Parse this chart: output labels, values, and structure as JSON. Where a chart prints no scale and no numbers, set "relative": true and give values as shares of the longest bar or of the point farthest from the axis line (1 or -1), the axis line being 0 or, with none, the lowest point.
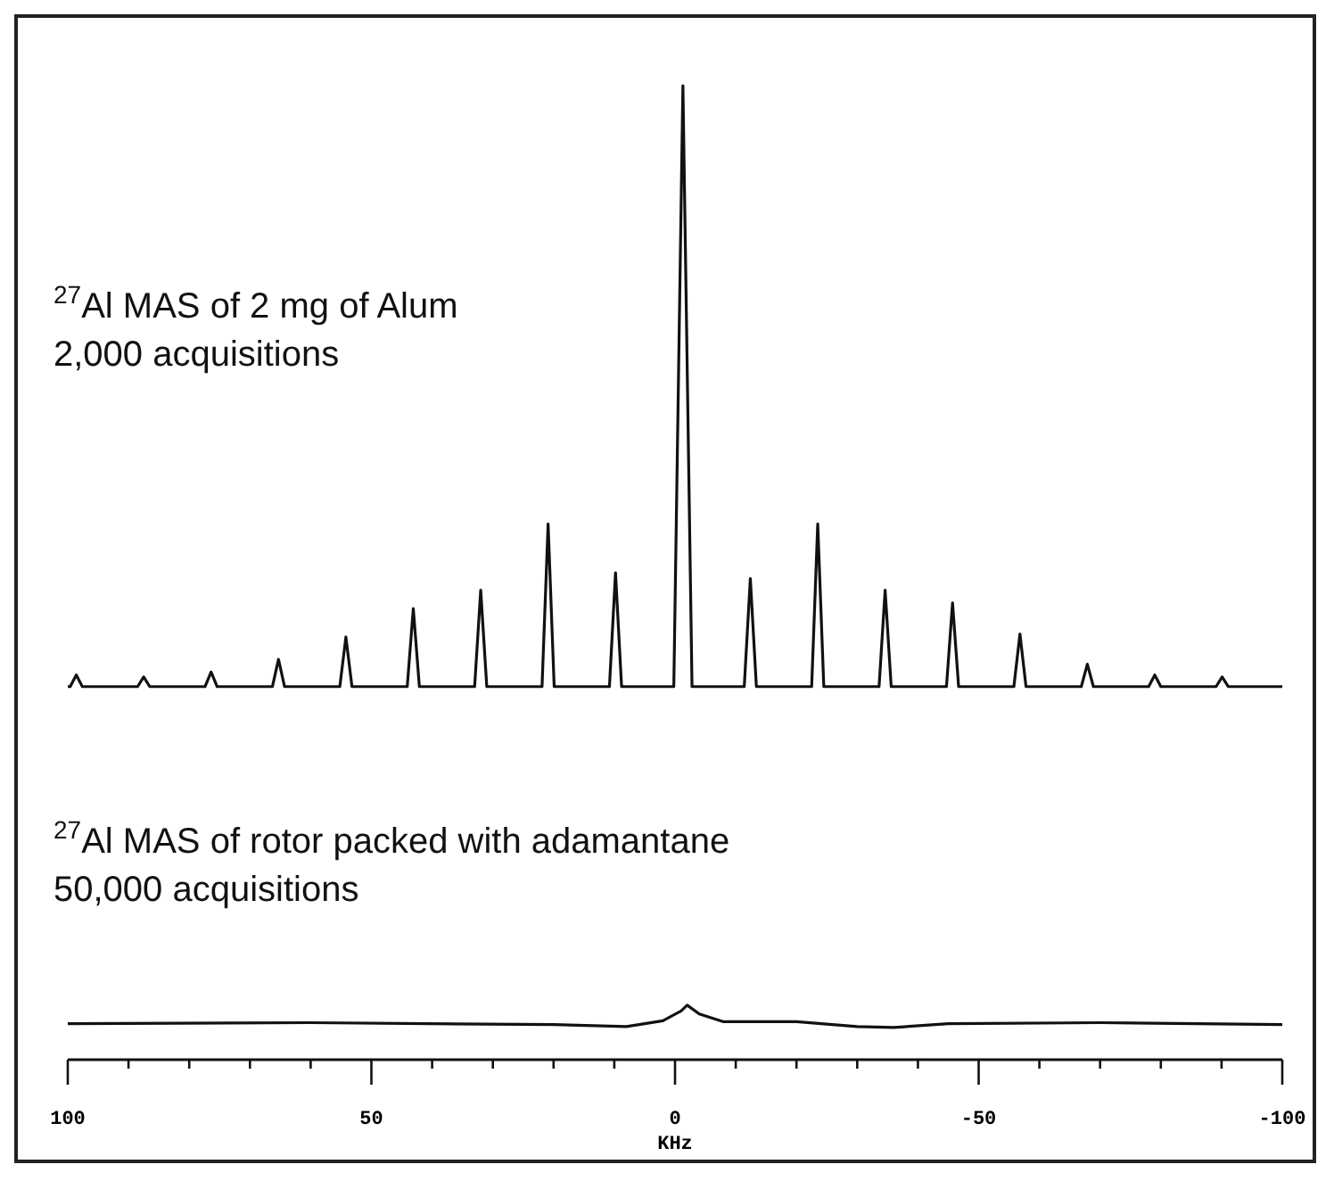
{
  "chart_data": {
    "type": "line",
    "relative": true,
    "xlabel": "KHz",
    "xlim": [
      100,
      -100
    ],
    "xticks": [
      100,
      {
        "value": 90,
        "label": null
      },
      {
        "value": 80,
        "label": null
      },
      {
        "value": 70,
        "label": null
      },
      {
        "value": 60,
        "label": null
      },
      50,
      {
        "value": 40,
        "label": null
      },
      {
        "value": 30,
        "label": null
      },
      {
        "value": 20,
        "label": null
      },
      {
        "value": 10,
        "label": null
      },
      0,
      {
        "value": -10,
        "label": null
      },
      {
        "value": -20,
        "label": null
      },
      {
        "value": -30,
        "label": null
      },
      {
        "value": -40,
        "label": null
      },
      -50,
      {
        "value": -60,
        "label": null
      },
      {
        "value": -70,
        "label": null
      },
      {
        "value": -80,
        "label": null
      },
      {
        "value": -90,
        "label": null
      },
      -100
    ],
    "annotations": [
      "$^{27}$Al MAS of 2 mg of Alum\n2,000 acquisitions",
      "$^{27}$Al MAS of rotor packed with adamantane\n50,000 acquisitions"
    ],
    "series": [
      {
        "color": "#111111",
        "x": [
          100,
          99.6,
          98.6,
          97.6,
          88.5,
          87.5,
          86.5,
          77.4,
          76.4,
          75.4,
          66.3,
          65.3,
          64.3,
          55.2,
          54.2,
          53.2,
          44.1,
          43.1,
          42.1,
          33.0,
          32.0,
          31.0,
          21.9,
          20.9,
          19.9,
          10.8,
          9.8,
          8.8,
          0.2,
          -1.3,
          -2.8,
          -11.4,
          -12.4,
          -13.4,
          -22.5,
          -23.5,
          -24.5,
          -33.6,
          -34.6,
          -35.6,
          -44.7,
          -45.7,
          -46.7,
          -55.8,
          -56.8,
          -57.8,
          -66.9,
          -67.9,
          -68.9,
          -78.0,
          -79.0,
          -80.0,
          -89.1,
          -90.1,
          -91.1,
          -100
        ],
        "values": [
          0.383,
          0.383,
          0.395,
          0.383,
          0.383,
          0.393,
          0.383,
          0.383,
          0.398,
          0.383,
          0.383,
          0.411,
          0.383,
          0.383,
          0.434,
          0.383,
          0.383,
          0.463,
          0.383,
          0.383,
          0.482,
          0.383,
          0.383,
          0.55,
          0.383,
          0.383,
          0.5,
          0.383,
          0.383,
          1.0,
          0.383,
          0.383,
          0.494,
          0.383,
          0.383,
          0.55,
          0.383,
          0.383,
          0.482,
          0.383,
          0.383,
          0.469,
          0.383,
          0.383,
          0.437,
          0.383,
          0.383,
          0.406,
          0.383,
          0.383,
          0.395,
          0.383,
          0.383,
          0.393,
          0.383,
          0.383
        ]
      },
      {
        "color": "#111111",
        "x": [
          100,
          60,
          20,
          8,
          2,
          -1,
          -2,
          -4,
          -8,
          -20,
          -30,
          -36,
          -45,
          -70,
          -100
        ],
        "values": [
          0.037,
          0.038,
          0.036,
          0.034,
          0.04,
          0.05,
          0.056,
          0.047,
          0.039,
          0.039,
          0.034,
          0.033,
          0.037,
          0.038,
          0.036
        ]
      }
    ]
  }
}
